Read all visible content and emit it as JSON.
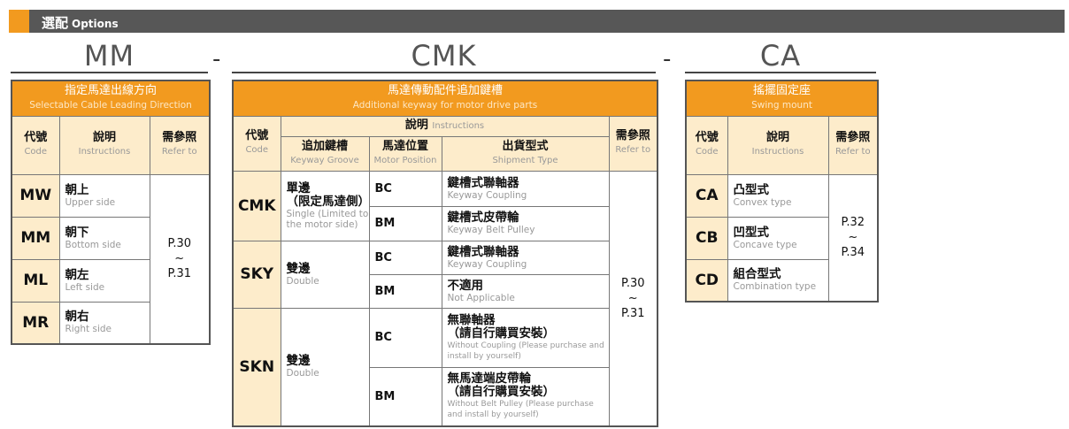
{
  "header": {
    "title_zh": "選配",
    "title_en": "Options"
  },
  "sections": {
    "mm": {
      "code": "MM",
      "title_zh": "指定馬達出線方向",
      "title_en": "Selectable Cable Leading Direction",
      "col_code_zh": "代號",
      "col_code_en": "Code",
      "col_desc_zh": "說明",
      "col_desc_en": "Instructions",
      "col_ref_zh": "需參照",
      "col_ref_en": "Refer to",
      "rows": [
        {
          "code": "MW",
          "zh": "朝上",
          "en": "Upper side"
        },
        {
          "code": "MM",
          "zh": "朝下",
          "en": "Bottom side"
        },
        {
          "code": "ML",
          "zh": "朝左",
          "en": "Left side"
        },
        {
          "code": "MR",
          "zh": "朝右",
          "en": "Right side"
        }
      ],
      "ref": {
        "from": "P.30",
        "sep": "~",
        "to": "P.31"
      }
    },
    "cmk": {
      "code": "CMK",
      "title_zh": "馬達傳動配件追加鍵槽",
      "title_en": "Additional keyway for motor drive parts",
      "col_code_zh": "代號",
      "col_code_en": "Code",
      "col_desc_zh": "說明",
      "col_desc_en": "Instructions",
      "col_groove_zh": "追加鍵槽",
      "col_groove_en": "Keyway Groove",
      "col_pos_zh": "馬達位置",
      "col_pos_en": "Motor Position",
      "col_ship_zh": "出貨型式",
      "col_ship_en": "Shipment Type",
      "col_ref_zh": "需參照",
      "col_ref_en": "Refer to",
      "groups": [
        {
          "code": "CMK",
          "groove_zh": "單邊\n（限定馬達側）",
          "groove_en": "Single (Limited to the motor side)",
          "rows": [
            {
              "pos": "BC",
              "zh": "鍵槽式聯軸器",
              "en": "Keyway Coupling"
            },
            {
              "pos": "BM",
              "zh": "鍵槽式皮帶輪",
              "en": "Keyway Belt Pulley"
            }
          ]
        },
        {
          "code": "SKY",
          "groove_zh": "雙邊",
          "groove_en": "Double",
          "rows": [
            {
              "pos": "BC",
              "zh": "鍵槽式聯軸器",
              "en": "Keyway Coupling"
            },
            {
              "pos": "BM",
              "zh": "不適用",
              "en": "Not Applicable"
            }
          ]
        },
        {
          "code": "SKN",
          "groove_zh": "雙邊",
          "groove_en": "Double",
          "rows": [
            {
              "pos": "BC",
              "zh": "無聯軸器\n（請自行購買安裝）",
              "en": "Without Coupling (Please purchase and install by yourself)"
            },
            {
              "pos": "BM",
              "zh": "無馬達端皮帶輪\n（請自行購買安裝）",
              "en": "Without Belt Pulley  (Please purchase and install by yourself)"
            }
          ]
        }
      ],
      "ref": {
        "from": "P.30",
        "sep": "~",
        "to": "P.31"
      }
    },
    "ca": {
      "code": "CA",
      "title_zh": "搖擺固定座",
      "title_en": "Swing mount",
      "col_code_zh": "代號",
      "col_code_en": "Code",
      "col_desc_zh": "說明",
      "col_desc_en": "Instructions",
      "col_ref_zh": "需參照",
      "col_ref_en": "Refer to",
      "rows": [
        {
          "code": "CA",
          "zh": "凸型式",
          "en": "Convex type"
        },
        {
          "code": "CB",
          "zh": "凹型式",
          "en": "Concave type"
        },
        {
          "code": "CD",
          "zh": "組合型式",
          "en": "Combination type"
        }
      ],
      "ref": {
        "from": "P.32",
        "sep": "~",
        "to": "P.34"
      }
    },
    "separator": "-"
  },
  "colors": {
    "accent": "#f29a1f",
    "bar": "#575757",
    "cell_bg": "#fdeccb"
  }
}
